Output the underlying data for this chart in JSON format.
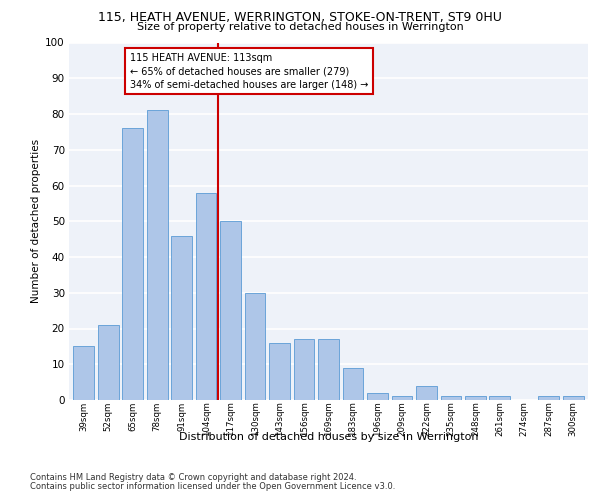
{
  "title1": "115, HEATH AVENUE, WERRINGTON, STOKE-ON-TRENT, ST9 0HU",
  "title2": "Size of property relative to detached houses in Werrington",
  "xlabel": "Distribution of detached houses by size in Werrington",
  "ylabel": "Number of detached properties",
  "categories": [
    "39sqm",
    "52sqm",
    "65sqm",
    "78sqm",
    "91sqm",
    "104sqm",
    "117sqm",
    "130sqm",
    "143sqm",
    "156sqm",
    "169sqm",
    "183sqm",
    "196sqm",
    "209sqm",
    "222sqm",
    "235sqm",
    "248sqm",
    "261sqm",
    "274sqm",
    "287sqm",
    "300sqm"
  ],
  "values": [
    15,
    21,
    76,
    81,
    46,
    58,
    50,
    30,
    16,
    17,
    17,
    9,
    2,
    1,
    4,
    1,
    1,
    1,
    0,
    1,
    1
  ],
  "bar_color": "#aec6e8",
  "bar_edge_color": "#5b9bd5",
  "vline_color": "#cc0000",
  "annotation_title": "115 HEATH AVENUE: 113sqm",
  "annotation_line1": "← 65% of detached houses are smaller (279)",
  "annotation_line2": "34% of semi-detached houses are larger (148) →",
  "annotation_box_color": "#ffffff",
  "annotation_box_edge_color": "#cc0000",
  "footnote1": "Contains HM Land Registry data © Crown copyright and database right 2024.",
  "footnote2": "Contains public sector information licensed under the Open Government Licence v3.0.",
  "ylim": [
    0,
    100
  ],
  "yticks": [
    0,
    10,
    20,
    30,
    40,
    50,
    60,
    70,
    80,
    90,
    100
  ],
  "bg_color": "#eef2f9",
  "grid_color": "#ffffff",
  "bar_width": 0.85
}
